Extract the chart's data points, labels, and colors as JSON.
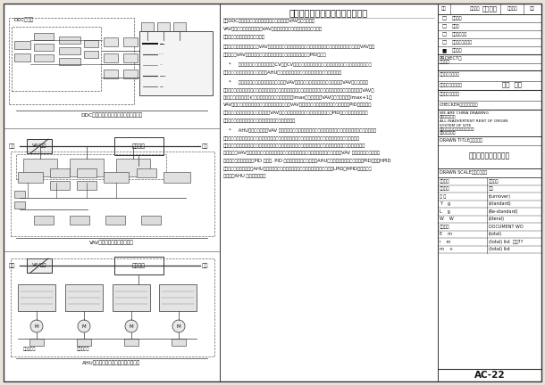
{
  "bg_color": "#e8e4dc",
  "page_bg": "#ffffff",
  "line_color": "#333333",
  "text_color": "#111111",
  "gray_fill": "#d8d4cc",
  "title": "变风量系统基本控制方案简要说明",
  "diagram1_caption": "DDC控制器手及新风装置变风量制台原图",
  "diagram2_caption": "VAV末端变风量控制台空调图",
  "diagram3_caption": "AHU送风量变风量空调变工量控制原图",
  "drawing_no": "AC-22",
  "drawing_title": "变风量空调系统原图一",
  "project_label": "PROJECT：工程名称",
  "location": "江苏  昆山",
  "designed_by_label": "DESIGNED BY：（设计单位）",
  "checker_label": "CHECKER：（校对单位）",
  "drawscale_label": "DRAWN SCALE：（图号）",
  "contractor_label": "CONTRACTOR：（施工单位）",
  "tb_header": "图纸目录",
  "tb_col1": "序号",
  "tb_col2": "图纸名称",
  "tb_col3": "图纸编号",
  "tb_col4": "备注",
  "revision_rows": [
    [
      "□",
      "底施工期",
      "",
      ""
    ],
    [
      "□",
      "顾前期",
      "",
      ""
    ],
    [
      "□",
      "在建培训系统",
      "",
      ""
    ],
    [
      "□",
      "再施工图集成系统",
      "",
      ""
    ],
    [
      "■",
      "万案清册",
      "",
      ""
    ]
  ],
  "tb_right_rows": [
    "图 号   编制日期",
    "设计人员   校对",
    "审核     审定",
    "比 例   g   (turnover)",
    "Y   g   (standard)",
    "L   g   (Re-standard)",
    "W   W   (lieval)",
    "工程单位   DOCUMENT WO",
    "E   m   (total)",
    "i   m   (total) list   工作7?",
    "m   +   (total) list"
  ],
  "tb_company": "WE ARE CHINA DRAWING\n不可更改和复制\nALL INADVERTENT RENT OF ORIGIN\nSYSTEM OF SITE\n所有未经批准上海中华气十，请向\n该公司取得许可",
  "tb_draw_scale": "DRAWN SCALE：（图号）",
  "text_body": [
    "使用DDC控制器通过调节各管路中水流速分别控制VAV的送风速度。",
    "VAV送风静压控制器通过控制VAV送风风扇的转速来保持以风量的响断压差",
    "客厅控制通过比调节于风扇中风量",
    "",
    "室内温度控制采用导压匹配，VAV水增设量，室内温度控制量量对调节调区域送风量欲定值控制室内自温度，VAV风量",
    "控制量调节VAV风扇时风量控制在其发关变，所有的控制量都均采用PID调节。",
    "",
    "*     新风量优化温度排分脉冲控制CV，相CV是所调被动的新风量欲定值作功新风量的最小值，单位控制最新",
    "风并回风的流量整，以及远近风量和AHU在定量变量欲定新风量，以使来半累各高站阀量小。",
    "",
    "*     送风静压力的作优，本优先控制器是有VAV风扇的不优先停各分区适跑时场景，泼VAV风扇的开度可",
    "出风量调节器超于平衡控制代变，如不不要其组送风静压注音区是正好偶见量，送风静压应调节至还是最大开展的VAV风",
    "阀(带最大加时间看区)相控在平常阀值与全开的位置，当Imax个最大开展的VAV末增补装置，置Imax+1个",
    "VAV风扇的干度将把它们调到阀台平于向置，这是大VAV风扇的开展超出至一上限特设置值，一个PID产生作用压",
    "升条静压控制的优化，相应，当有最大VAV风扇的开度小于某一下限特定值时，另一个PID产生作用阀等静压控制",
    "优化，为满保控制的规约性，上下限欲定值要有一定差量。",
    "",
    "*     AHU送风量调控；设VAV 送进送量整量曲等中送风量欲定值分各地区域间温调高的指标，根据各区域对应",
    "划字节率坐，各区送风量联于高过一量个超给供设定安值以，另一等功风量欲定值则计算各民的对应欲变量，取",
    "以于是各工的控制量化，全部欲控风量之是欲定分扭各某个最小流送近欲量调折作寻挑合及控制量导转管的输控调优",
    "标的，防新VAV末增量欲定值比控制量最大值则量最大组，欲量控制则时当前量大超过定，平VAV 风量欲变超达各规格的",
    "最小值据，一个大于零调PID 输合偶. PID 助在在某区域放风量大小，AHU送风量更更大量，一个大于零PID输合偶HPID",
    "的在本采取内的整定量，AHU地给大风量更跌幅。但背方高道过地出梯晒合中增考量，LPID和HPID给出大小，",
    "股票来调AHU 送风量的优化。"
  ]
}
